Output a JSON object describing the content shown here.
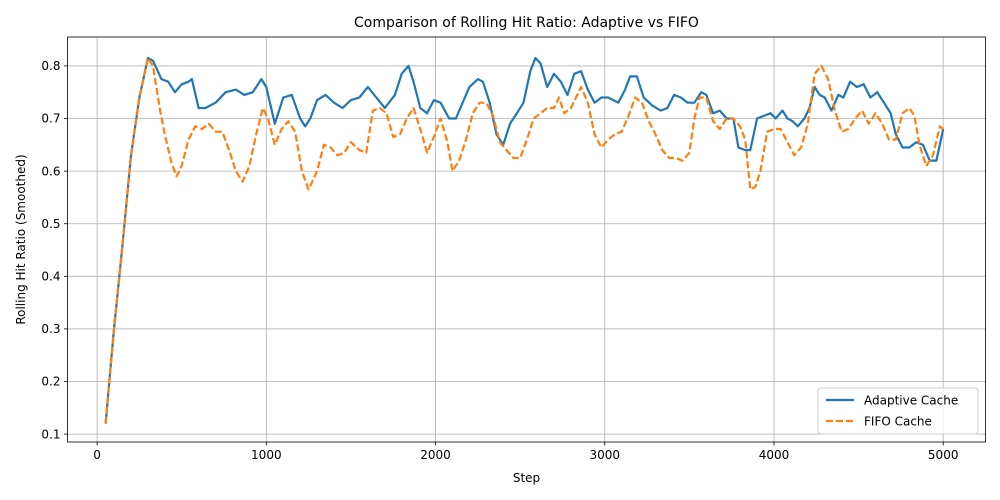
{
  "chart_data": {
    "type": "line",
    "title": "Comparison of Rolling Hit Ratio: Adaptive vs FIFO",
    "xlabel": "Step",
    "ylabel": "Rolling Hit Ratio (Smoothed)",
    "xlim": [
      -175,
      5250
    ],
    "ylim": [
      0.085,
      0.855
    ],
    "xticks": [
      0,
      1000,
      2000,
      3000,
      4000,
      5000
    ],
    "yticks": [
      0.1,
      0.2,
      0.3,
      0.4,
      0.5,
      0.6,
      0.7,
      0.8
    ],
    "grid": true,
    "legend_position": "lower right",
    "series": [
      {
        "name": "Adaptive Cache",
        "color": "#1f77b4",
        "dash": "solid",
        "points": [
          [
            50,
            0.12
          ],
          [
            100,
            0.3
          ],
          [
            150,
            0.46
          ],
          [
            200,
            0.63
          ],
          [
            250,
            0.74
          ],
          [
            300,
            0.815
          ],
          [
            330,
            0.81
          ],
          [
            380,
            0.775
          ],
          [
            420,
            0.77
          ],
          [
            460,
            0.75
          ],
          [
            500,
            0.765
          ],
          [
            540,
            0.77
          ],
          [
            560,
            0.775
          ],
          [
            600,
            0.72
          ],
          [
            640,
            0.72
          ],
          [
            700,
            0.73
          ],
          [
            760,
            0.75
          ],
          [
            820,
            0.755
          ],
          [
            870,
            0.745
          ],
          [
            920,
            0.75
          ],
          [
            970,
            0.775
          ],
          [
            1000,
            0.76
          ],
          [
            1050,
            0.69
          ],
          [
            1100,
            0.74
          ],
          [
            1150,
            0.745
          ],
          [
            1200,
            0.7
          ],
          [
            1230,
            0.685
          ],
          [
            1260,
            0.7
          ],
          [
            1300,
            0.735
          ],
          [
            1350,
            0.745
          ],
          [
            1400,
            0.73
          ],
          [
            1450,
            0.72
          ],
          [
            1500,
            0.735
          ],
          [
            1550,
            0.74
          ],
          [
            1600,
            0.76
          ],
          [
            1650,
            0.74
          ],
          [
            1700,
            0.72
          ],
          [
            1760,
            0.745
          ],
          [
            1800,
            0.785
          ],
          [
            1840,
            0.8
          ],
          [
            1870,
            0.77
          ],
          [
            1910,
            0.72
          ],
          [
            1950,
            0.71
          ],
          [
            1990,
            0.735
          ],
          [
            2030,
            0.73
          ],
          [
            2080,
            0.7
          ],
          [
            2120,
            0.7
          ],
          [
            2160,
            0.73
          ],
          [
            2200,
            0.76
          ],
          [
            2250,
            0.775
          ],
          [
            2280,
            0.77
          ],
          [
            2320,
            0.73
          ],
          [
            2360,
            0.67
          ],
          [
            2400,
            0.65
          ],
          [
            2440,
            0.69
          ],
          [
            2480,
            0.71
          ],
          [
            2520,
            0.73
          ],
          [
            2560,
            0.79
          ],
          [
            2590,
            0.815
          ],
          [
            2620,
            0.805
          ],
          [
            2660,
            0.76
          ],
          [
            2700,
            0.785
          ],
          [
            2740,
            0.77
          ],
          [
            2780,
            0.745
          ],
          [
            2820,
            0.785
          ],
          [
            2860,
            0.79
          ],
          [
            2900,
            0.755
          ],
          [
            2940,
            0.73
          ],
          [
            2980,
            0.74
          ],
          [
            3020,
            0.74
          ],
          [
            3080,
            0.73
          ],
          [
            3120,
            0.755
          ],
          [
            3150,
            0.78
          ],
          [
            3190,
            0.78
          ],
          [
            3230,
            0.74
          ],
          [
            3280,
            0.725
          ],
          [
            3330,
            0.715
          ],
          [
            3370,
            0.72
          ],
          [
            3410,
            0.745
          ],
          [
            3450,
            0.74
          ],
          [
            3490,
            0.73
          ],
          [
            3530,
            0.73
          ],
          [
            3570,
            0.75
          ],
          [
            3600,
            0.745
          ],
          [
            3640,
            0.71
          ],
          [
            3680,
            0.715
          ],
          [
            3720,
            0.7
          ],
          [
            3760,
            0.7
          ],
          [
            3790,
            0.645
          ],
          [
            3830,
            0.64
          ],
          [
            3860,
            0.64
          ],
          [
            3900,
            0.7
          ],
          [
            3940,
            0.705
          ],
          [
            3980,
            0.71
          ],
          [
            4010,
            0.7
          ],
          [
            4050,
            0.715
          ],
          [
            4080,
            0.7
          ],
          [
            4110,
            0.695
          ],
          [
            4140,
            0.685
          ],
          [
            4180,
            0.7
          ],
          [
            4210,
            0.72
          ],
          [
            4240,
            0.76
          ],
          [
            4270,
            0.745
          ],
          [
            4300,
            0.74
          ],
          [
            4340,
            0.715
          ],
          [
            4380,
            0.745
          ],
          [
            4410,
            0.74
          ],
          [
            4450,
            0.77
          ],
          [
            4490,
            0.76
          ],
          [
            4530,
            0.765
          ],
          [
            4570,
            0.74
          ],
          [
            4610,
            0.75
          ],
          [
            4650,
            0.73
          ],
          [
            4690,
            0.71
          ],
          [
            4720,
            0.67
          ],
          [
            4760,
            0.645
          ],
          [
            4800,
            0.645
          ],
          [
            4840,
            0.655
          ],
          [
            4880,
            0.65
          ],
          [
            4920,
            0.62
          ],
          [
            4960,
            0.62
          ],
          [
            5000,
            0.68
          ]
        ]
      },
      {
        "name": "FIFO Cache",
        "color": "#ff7f0e",
        "dash": "dashed",
        "points": [
          [
            50,
            0.12
          ],
          [
            100,
            0.3
          ],
          [
            150,
            0.46
          ],
          [
            200,
            0.63
          ],
          [
            250,
            0.74
          ],
          [
            300,
            0.815
          ],
          [
            330,
            0.8
          ],
          [
            370,
            0.72
          ],
          [
            400,
            0.67
          ],
          [
            440,
            0.615
          ],
          [
            470,
            0.59
          ],
          [
            500,
            0.61
          ],
          [
            540,
            0.66
          ],
          [
            580,
            0.685
          ],
          [
            620,
            0.68
          ],
          [
            660,
            0.69
          ],
          [
            700,
            0.675
          ],
          [
            740,
            0.675
          ],
          [
            780,
            0.64
          ],
          [
            820,
            0.6
          ],
          [
            860,
            0.58
          ],
          [
            900,
            0.61
          ],
          [
            940,
            0.67
          ],
          [
            980,
            0.72
          ],
          [
            1010,
            0.7
          ],
          [
            1050,
            0.65
          ],
          [
            1090,
            0.68
          ],
          [
            1130,
            0.695
          ],
          [
            1170,
            0.675
          ],
          [
            1210,
            0.6
          ],
          [
            1250,
            0.565
          ],
          [
            1300,
            0.6
          ],
          [
            1340,
            0.65
          ],
          [
            1380,
            0.645
          ],
          [
            1420,
            0.63
          ],
          [
            1460,
            0.635
          ],
          [
            1500,
            0.655
          ],
          [
            1550,
            0.64
          ],
          [
            1590,
            0.635
          ],
          [
            1630,
            0.715
          ],
          [
            1670,
            0.72
          ],
          [
            1710,
            0.71
          ],
          [
            1750,
            0.665
          ],
          [
            1790,
            0.67
          ],
          [
            1830,
            0.7
          ],
          [
            1870,
            0.72
          ],
          [
            1910,
            0.68
          ],
          [
            1950,
            0.635
          ],
          [
            1990,
            0.665
          ],
          [
            2030,
            0.7
          ],
          [
            2070,
            0.655
          ],
          [
            2100,
            0.6
          ],
          [
            2140,
            0.62
          ],
          [
            2180,
            0.66
          ],
          [
            2220,
            0.71
          ],
          [
            2260,
            0.73
          ],
          [
            2300,
            0.73
          ],
          [
            2340,
            0.705
          ],
          [
            2380,
            0.655
          ],
          [
            2420,
            0.64
          ],
          [
            2460,
            0.625
          ],
          [
            2500,
            0.625
          ],
          [
            2540,
            0.66
          ],
          [
            2580,
            0.7
          ],
          [
            2620,
            0.71
          ],
          [
            2660,
            0.72
          ],
          [
            2700,
            0.72
          ],
          [
            2730,
            0.74
          ],
          [
            2760,
            0.71
          ],
          [
            2800,
            0.72
          ],
          [
            2830,
            0.74
          ],
          [
            2860,
            0.76
          ],
          [
            2900,
            0.73
          ],
          [
            2940,
            0.67
          ],
          [
            2980,
            0.645
          ],
          [
            3020,
            0.66
          ],
          [
            3060,
            0.67
          ],
          [
            3100,
            0.675
          ],
          [
            3140,
            0.705
          ],
          [
            3180,
            0.74
          ],
          [
            3220,
            0.73
          ],
          [
            3260,
            0.695
          ],
          [
            3300,
            0.67
          ],
          [
            3340,
            0.64
          ],
          [
            3380,
            0.625
          ],
          [
            3420,
            0.625
          ],
          [
            3460,
            0.62
          ],
          [
            3500,
            0.635
          ],
          [
            3530,
            0.7
          ],
          [
            3560,
            0.74
          ],
          [
            3600,
            0.74
          ],
          [
            3640,
            0.695
          ],
          [
            3680,
            0.68
          ],
          [
            3720,
            0.7
          ],
          [
            3760,
            0.7
          ],
          [
            3800,
            0.685
          ],
          [
            3830,
            0.66
          ],
          [
            3860,
            0.565
          ],
          [
            3890,
            0.57
          ],
          [
            3920,
            0.6
          ],
          [
            3960,
            0.675
          ],
          [
            4000,
            0.68
          ],
          [
            4040,
            0.68
          ],
          [
            4080,
            0.655
          ],
          [
            4120,
            0.63
          ],
          [
            4160,
            0.645
          ],
          [
            4200,
            0.69
          ],
          [
            4240,
            0.785
          ],
          [
            4280,
            0.8
          ],
          [
            4320,
            0.775
          ],
          [
            4360,
            0.715
          ],
          [
            4400,
            0.675
          ],
          [
            4440,
            0.68
          ],
          [
            4480,
            0.7
          ],
          [
            4520,
            0.715
          ],
          [
            4560,
            0.69
          ],
          [
            4600,
            0.71
          ],
          [
            4640,
            0.69
          ],
          [
            4680,
            0.66
          ],
          [
            4720,
            0.66
          ],
          [
            4760,
            0.71
          ],
          [
            4800,
            0.72
          ],
          [
            4830,
            0.705
          ],
          [
            4860,
            0.65
          ],
          [
            4900,
            0.61
          ],
          [
            4940,
            0.63
          ],
          [
            4980,
            0.685
          ],
          [
            5000,
            0.68
          ]
        ]
      }
    ]
  }
}
